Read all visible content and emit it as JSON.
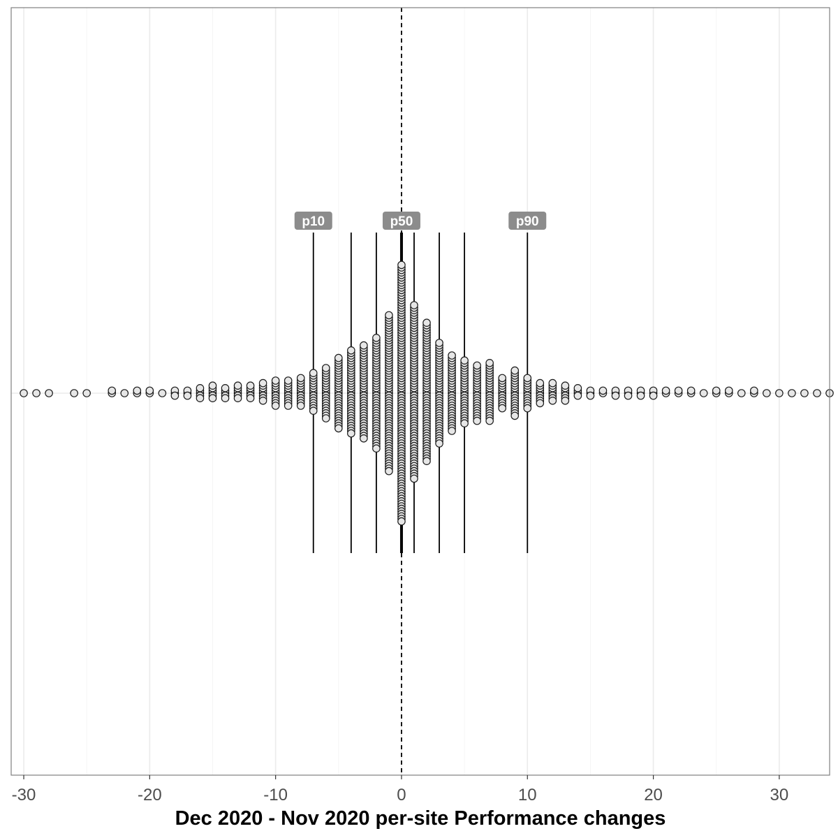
{
  "chart_data": {
    "type": "scatter",
    "subtype": "dot-strip (beeswarm)",
    "xlabel": "Dec 2020 - Nov 2020 per-site Performance changes",
    "xlim": [
      -31,
      34
    ],
    "x_ticks": [
      -30,
      -20,
      -10,
      0,
      10,
      20,
      30
    ],
    "x_tick_labels": [
      "-30",
      "-20",
      "-10",
      "0",
      "10",
      "20",
      "30"
    ],
    "grid": "vertical major and minor gridlines",
    "reference_line": {
      "x": 0,
      "style": "dashed"
    },
    "percentiles": [
      {
        "x": -7,
        "label": "p10"
      },
      {
        "x": -4,
        "label": ""
      },
      {
        "x": -2,
        "label": ""
      },
      {
        "x": 0,
        "label": "p50"
      },
      {
        "x": 1,
        "label": ""
      },
      {
        "x": 3,
        "label": ""
      },
      {
        "x": 5,
        "label": ""
      },
      {
        "x": 10,
        "label": "p90"
      }
    ],
    "dot_counts": [
      {
        "x": -30,
        "n": 1
      },
      {
        "x": -29,
        "n": 1
      },
      {
        "x": -28,
        "n": 1
      },
      {
        "x": -26,
        "n": 1
      },
      {
        "x": -25,
        "n": 1
      },
      {
        "x": -23,
        "n": 2
      },
      {
        "x": -22,
        "n": 1
      },
      {
        "x": -21,
        "n": 2
      },
      {
        "x": -20,
        "n": 2
      },
      {
        "x": -19,
        "n": 1
      },
      {
        "x": -18,
        "n": 3
      },
      {
        "x": -17,
        "n": 3
      },
      {
        "x": -16,
        "n": 5
      },
      {
        "x": -15,
        "n": 6
      },
      {
        "x": -14,
        "n": 5
      },
      {
        "x": -13,
        "n": 6
      },
      {
        "x": -12,
        "n": 6
      },
      {
        "x": -11,
        "n": 8
      },
      {
        "x": -10,
        "n": 11
      },
      {
        "x": -9,
        "n": 11
      },
      {
        "x": -8,
        "n": 12
      },
      {
        "x": -7,
        "n": 16
      },
      {
        "x": -6,
        "n": 21
      },
      {
        "x": -5,
        "n": 29
      },
      {
        "x": -4,
        "n": 34
      },
      {
        "x": -3,
        "n": 38
      },
      {
        "x": -2,
        "n": 45
      },
      {
        "x": -1,
        "n": 63
      },
      {
        "x": 0,
        "n": 103
      },
      {
        "x": 1,
        "n": 70
      },
      {
        "x": 2,
        "n": 56
      },
      {
        "x": 3,
        "n": 41
      },
      {
        "x": 4,
        "n": 31
      },
      {
        "x": 5,
        "n": 26
      },
      {
        "x": 6,
        "n": 23
      },
      {
        "x": 7,
        "n": 24
      },
      {
        "x": 8,
        "n": 13
      },
      {
        "x": 9,
        "n": 19
      },
      {
        "x": 10,
        "n": 13
      },
      {
        "x": 11,
        "n": 9
      },
      {
        "x": 12,
        "n": 8
      },
      {
        "x": 13,
        "n": 7
      },
      {
        "x": 14,
        "n": 4
      },
      {
        "x": 15,
        "n": 3
      },
      {
        "x": 16,
        "n": 2
      },
      {
        "x": 17,
        "n": 3
      },
      {
        "x": 18,
        "n": 3
      },
      {
        "x": 19,
        "n": 3
      },
      {
        "x": 20,
        "n": 3
      },
      {
        "x": 21,
        "n": 2
      },
      {
        "x": 22,
        "n": 2
      },
      {
        "x": 23,
        "n": 2
      },
      {
        "x": 24,
        "n": 1
      },
      {
        "x": 25,
        "n": 2
      },
      {
        "x": 26,
        "n": 2
      },
      {
        "x": 27,
        "n": 1
      },
      {
        "x": 28,
        "n": 2
      },
      {
        "x": 29,
        "n": 1
      },
      {
        "x": 30,
        "n": 1
      },
      {
        "x": 31,
        "n": 1
      },
      {
        "x": 32,
        "n": 1
      },
      {
        "x": 33,
        "n": 1
      },
      {
        "x": 34,
        "n": 1
      }
    ],
    "colors": {
      "dot_fill": "#e6e6e6",
      "dot_stroke": "#1a1a1a",
      "label_box": "#8c8c8c",
      "grid": "#ebebeb",
      "panel_border": "#7f7f7f"
    }
  }
}
